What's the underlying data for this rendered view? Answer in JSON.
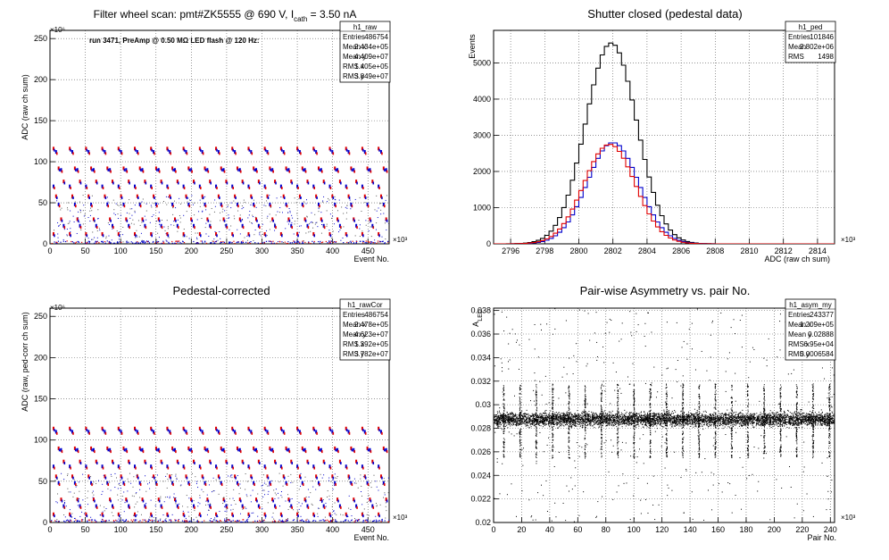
{
  "page": {
    "background": "#ffffff"
  },
  "chart_data": [
    {
      "type": "scatter",
      "title": "Filter wheel scan: pmt#ZK5555 @   690 V, I",
      "title_sub": "cath",
      "title_tail": " = 3.50 nA",
      "annotation": "run 3471, PreAmp @ 0.50 MΩ LED flash @  120 Hz:",
      "xlabel": "Event No.",
      "ylabel": "ADC (raw ch sum)",
      "x_exponent": "×10³",
      "y_exponent": "×10⁶",
      "xlim": [
        0,
        480
      ],
      "ylim": [
        0,
        260
      ],
      "x_ticks": [
        0,
        50,
        100,
        150,
        200,
        250,
        300,
        350,
        400,
        450
      ],
      "y_ticks": [
        0,
        50,
        100,
        150,
        200,
        250
      ],
      "grid": true,
      "stats": {
        "name": "h1_raw",
        "rows": [
          {
            "label": "Entries",
            "value": "486754"
          },
          {
            "label": "Mean x",
            "value": "2.434e+05"
          },
          {
            "label": "Mean y",
            "value": "4.409e+07"
          },
          {
            "label": "RMS x",
            "value": "1.405e+05"
          },
          {
            "label": "RMS y",
            "value": "3.849e+07"
          }
        ]
      },
      "levels": [
        116,
        112,
        92,
        90,
        76,
        70,
        58,
        48,
        30,
        22,
        12
      ],
      "cycle_period": 23,
      "cycle_start": 5,
      "colors": {
        "red": "#e00000",
        "blue": "#0000cc"
      }
    },
    {
      "type": "line",
      "title": "Shutter closed (pedestal data)",
      "xlabel": "ADC (raw ch sum)",
      "ylabel": "Events",
      "x_exponent": "×10³",
      "xlim": [
        2795,
        2815
      ],
      "ylim": [
        0,
        5900
      ],
      "x_ticks": [
        2796,
        2798,
        2800,
        2802,
        2804,
        2806,
        2808,
        2810,
        2812,
        2814
      ],
      "y_ticks": [
        0,
        1000,
        2000,
        3000,
        4000,
        5000
      ],
      "grid": true,
      "stats": {
        "name": "h1_ped",
        "rows": [
          {
            "label": "Entries",
            "value": "101846"
          },
          {
            "label": "Mean",
            "value": "2.802e+06"
          },
          {
            "label": "RMS",
            "value": "1498"
          }
        ]
      },
      "series": [
        {
          "color": "#000000",
          "peak": 5550,
          "center": 2801.9,
          "sigma": 1.5
        },
        {
          "color": "#0000cc",
          "peak": 2800,
          "center": 2802.0,
          "sigma": 1.5
        },
        {
          "color": "#e00000",
          "peak": 2750,
          "center": 2801.8,
          "sigma": 1.5
        }
      ]
    },
    {
      "type": "scatter",
      "title": "Pedestal-corrected",
      "xlabel": "Event No.",
      "ylabel": "ADC (raw, ped-corr ch sum)",
      "x_exponent": "×10³",
      "y_exponent": "×10⁶",
      "xlim": [
        0,
        480
      ],
      "ylim": [
        0,
        260
      ],
      "x_ticks": [
        0,
        50,
        100,
        150,
        200,
        250,
        300,
        350,
        400,
        450
      ],
      "y_ticks": [
        0,
        50,
        100,
        150,
        200,
        250
      ],
      "grid": true,
      "stats": {
        "name": "h1_rawCor",
        "rows": [
          {
            "label": "Entries",
            "value": "486754"
          },
          {
            "label": "Mean x",
            "value": "2.478e+05"
          },
          {
            "label": "Mean y",
            "value": "4.623e+07"
          },
          {
            "label": "RMS x",
            "value": "1.392e+05"
          },
          {
            "label": "RMS y",
            "value": "3.782e+07"
          }
        ]
      },
      "levels": [
        114,
        110,
        90,
        88,
        74,
        68,
        56,
        48,
        28,
        20,
        10
      ],
      "cycle_period": 23,
      "cycle_start": 5,
      "colors": {
        "red": "#e00000",
        "blue": "#0000cc"
      }
    },
    {
      "type": "scatter",
      "title": "Pair-wise Asymmetry vs. pair No.",
      "xlabel": "Pair No.",
      "ylabel": "A",
      "ylabel_sub": "LED",
      "x_exponent": "×10³",
      "xlim": [
        0,
        243
      ],
      "ylim": [
        0.02,
        0.0382
      ],
      "x_ticks": [
        0,
        20,
        40,
        60,
        80,
        100,
        120,
        140,
        160,
        180,
        200,
        220,
        240
      ],
      "y_ticks": [
        0.02,
        0.022,
        0.024,
        0.026,
        0.028,
        0.03,
        0.032,
        0.034,
        0.036,
        0.038
      ],
      "grid": true,
      "stats": {
        "name": "h1_asym_my",
        "rows": [
          {
            "label": "Entries",
            "value": "243377"
          },
          {
            "label": "Mean x",
            "value": "1.209e+05"
          },
          {
            "label": "Mean y",
            "value": "0.02888"
          },
          {
            "label": "RMS x",
            "value": "6.95e+04"
          },
          {
            "label": "RMS y",
            "value": "0.0006584"
          }
        ]
      },
      "band_center": 0.0288,
      "band_halfwidth": 0.0006,
      "spike_low": 0.0255,
      "spike_high": 0.0318,
      "spike_period": 11.6,
      "spike_start": 7,
      "color": "#000000"
    }
  ]
}
